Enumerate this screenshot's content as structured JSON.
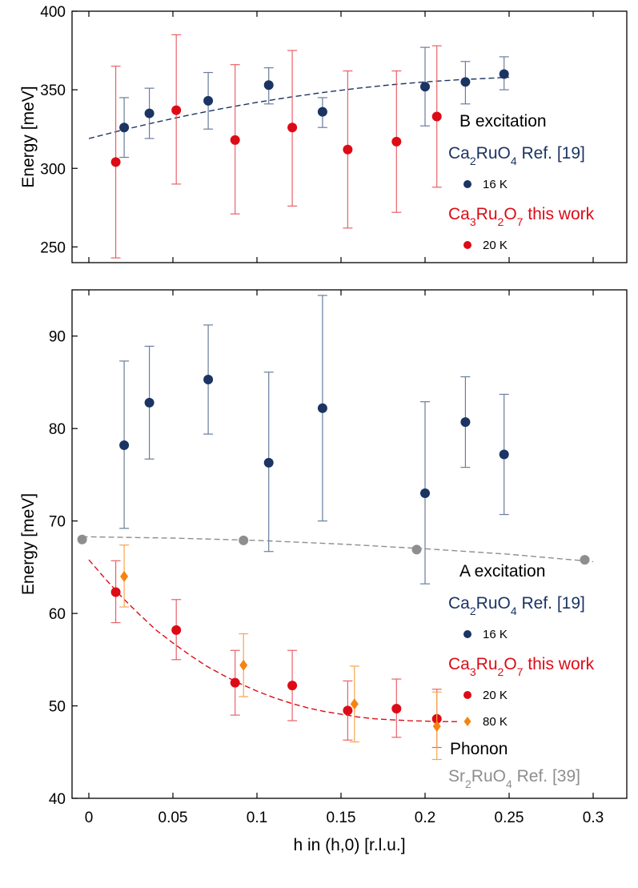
{
  "chart_data": [
    {
      "type": "scatter",
      "title": "",
      "xlabel": "",
      "ylabel": "Energy [meV]",
      "xlim": [
        -0.01,
        0.32
      ],
      "ylim": [
        240,
        400
      ],
      "yticks": [
        250,
        300,
        350,
        400
      ],
      "xticks": [
        0,
        0.05,
        0.1,
        0.15,
        0.2,
        0.25,
        0.3
      ],
      "grid": false,
      "legend": {
        "placement": "right",
        "title": "B excitation",
        "groups": [
          {
            "text": "Ca₂RuO₄ Ref. [19]",
            "formula": [
              "Ca",
              "2",
              "RuO",
              "4",
              " Ref. [19]"
            ],
            "color": "#1b3463",
            "items": [
              {
                "label": "16 K",
                "marker": "circle",
                "color": "#1b3463"
              }
            ]
          },
          {
            "text": "Ca₃Ru₂O₇ this work",
            "formula": [
              "Ca",
              "3",
              "Ru",
              "2",
              "O",
              "7",
              " this work"
            ],
            "color": "#dd0b16",
            "items": [
              {
                "label": "20 K",
                "marker": "circle",
                "color": "#dd0b16"
              }
            ]
          }
        ]
      },
      "series": [
        {
          "name": "Ca2RuO4 16 K",
          "color": "#1b3463",
          "errcolor": "#6a7d9c",
          "marker": "circle",
          "x": [
            0.021,
            0.036,
            0.071,
            0.107,
            0.139,
            0.2,
            0.224,
            0.247
          ],
          "y": [
            326,
            335,
            343,
            353,
            336,
            352,
            355,
            360
          ],
          "yerr_low": [
            307,
            319,
            325,
            341,
            326,
            327,
            341,
            350
          ],
          "yerr_high": [
            345,
            351,
            361,
            364,
            345,
            377,
            368,
            371
          ]
        },
        {
          "name": "Ca3Ru2O7 20 K",
          "color": "#dd0b16",
          "errcolor": "#e6626a",
          "marker": "circle",
          "x": [
            0.016,
            0.052,
            0.087,
            0.121,
            0.154,
            0.183,
            0.207
          ],
          "y": [
            304,
            337,
            318,
            326,
            312,
            317,
            333
          ],
          "yerr_low": [
            243,
            290,
            271,
            276,
            262,
            272,
            288
          ],
          "yerr_high": [
            365,
            385,
            366,
            375,
            362,
            362,
            378
          ]
        }
      ],
      "fits": [
        {
          "name": "Ca2RuO4 fit",
          "color": "#1b3463",
          "x": [
            0.0,
            0.02,
            0.04,
            0.06,
            0.08,
            0.1,
            0.12,
            0.14,
            0.16,
            0.18,
            0.2,
            0.22,
            0.24,
            0.25
          ],
          "y": [
            319,
            324.4,
            329.4,
            334,
            338.2,
            342,
            345.4,
            348.4,
            351,
            353.2,
            355,
            356.4,
            357.4,
            358
          ]
        }
      ]
    },
    {
      "type": "scatter",
      "title": "",
      "xlabel": "h in (h,0) [r.l.u.]",
      "ylabel": "Energy [meV]",
      "xlim": [
        -0.01,
        0.32
      ],
      "ylim": [
        40,
        95
      ],
      "yticks": [
        40,
        50,
        60,
        70,
        80,
        90
      ],
      "xticks": [
        0,
        0.05,
        0.1,
        0.15,
        0.2,
        0.25,
        0.3
      ],
      "xticklabels": [
        "0",
        "0.05",
        "0.1",
        "0.15",
        "0.2",
        "0.25",
        "0.3"
      ],
      "grid": false,
      "legend": {
        "placement": "right",
        "title": "A excitation",
        "groups": [
          {
            "text": "Ca₂RuO₄ Ref. [19]",
            "formula": [
              "Ca",
              "2",
              "RuO",
              "4",
              " Ref. [19]"
            ],
            "color": "#1b3463",
            "items": [
              {
                "label": "16 K",
                "marker": "circle",
                "color": "#1b3463"
              }
            ]
          },
          {
            "text": "Ca₃Ru₂O₇ this work",
            "formula": [
              "Ca",
              "3",
              "Ru",
              "2",
              "O",
              "7",
              " this work"
            ],
            "color": "#dd0b16",
            "items": [
              {
                "label": "20 K",
                "marker": "circle",
                "color": "#dd0b16"
              },
              {
                "label": "80 K",
                "marker": "diamond",
                "color": "#f7830f"
              }
            ]
          }
        ],
        "extra_title": "Phonon",
        "extra_group": {
          "text": "Sr₂RuO₄ Ref. [39]",
          "formula": [
            "Sr",
            "2",
            "RuO",
            "4",
            " Ref. [39]"
          ],
          "color": "#8e8e8e"
        }
      },
      "series": [
        {
          "name": "Ca2RuO4 16 K",
          "color": "#1b3463",
          "errcolor": "#6a7d9c",
          "marker": "circle",
          "x": [
            0.021,
            0.036,
            0.071,
            0.107,
            0.139,
            0.2,
            0.224,
            0.247
          ],
          "y": [
            78.2,
            82.8,
            85.3,
            76.3,
            82.2,
            73.0,
            80.7,
            77.2
          ],
          "yerr_low": [
            69.2,
            76.7,
            79.4,
            66.7,
            70.0,
            63.2,
            75.8,
            70.7
          ],
          "yerr_high": [
            87.3,
            88.9,
            91.2,
            86.1,
            94.4,
            82.9,
            85.6,
            83.7
          ]
        },
        {
          "name": "Ca3Ru2O7 20 K",
          "color": "#dd0b16",
          "errcolor": "#e6626a",
          "marker": "circle",
          "x": [
            0.016,
            0.052,
            0.087,
            0.121,
            0.154,
            0.183,
            0.207
          ],
          "y": [
            62.3,
            58.2,
            52.5,
            52.2,
            49.5,
            49.7,
            48.6
          ],
          "yerr_low": [
            59.0,
            55.0,
            49.0,
            48.4,
            46.3,
            46.6,
            45.5
          ],
          "yerr_high": [
            65.7,
            61.5,
            56.0,
            56.0,
            52.7,
            52.9,
            51.8
          ]
        },
        {
          "name": "Ca3Ru2O7 80 K",
          "color": "#f7830f",
          "errcolor": "#f7a54f",
          "marker": "diamond",
          "x": [
            0.021,
            0.092,
            0.158,
            0.207
          ],
          "y": [
            64.0,
            54.4,
            50.2,
            47.8
          ],
          "yerr_low": [
            60.7,
            51.0,
            46.1,
            44.2
          ],
          "yerr_high": [
            67.4,
            57.8,
            54.3,
            51.5
          ]
        },
        {
          "name": "Sr2RuO4 phonon",
          "color": "#8e8e8e",
          "marker": "circle",
          "x": [
            -0.004,
            0.092,
            0.195,
            0.295
          ],
          "y": [
            68.0,
            67.9,
            66.9,
            65.8
          ]
        }
      ],
      "fits": [
        {
          "name": "Ca3Ru2O7 fit",
          "color": "#dd0b16",
          "x": [
            0.0,
            0.01,
            0.02,
            0.03,
            0.04,
            0.05,
            0.06,
            0.07,
            0.08,
            0.09,
            0.1,
            0.11,
            0.12,
            0.13,
            0.14,
            0.15,
            0.16,
            0.17,
            0.18,
            0.19,
            0.2,
            0.21,
            0.22
          ],
          "y": [
            65.8,
            63.7,
            61.7,
            59.9,
            58.2,
            56.8,
            55.5,
            54.3,
            53.3,
            52.4,
            51.6,
            50.9,
            50.3,
            49.8,
            49.4,
            49.1,
            48.8,
            48.6,
            48.5,
            48.4,
            48.35,
            48.3,
            48.3
          ]
        },
        {
          "name": "Sr2RuO4 fit",
          "color": "#8e8e8e",
          "x": [
            -0.004,
            0.05,
            0.1,
            0.15,
            0.2,
            0.25,
            0.3
          ],
          "y": [
            68.3,
            68.15,
            67.9,
            67.5,
            67.0,
            66.4,
            65.6
          ]
        }
      ]
    }
  ]
}
